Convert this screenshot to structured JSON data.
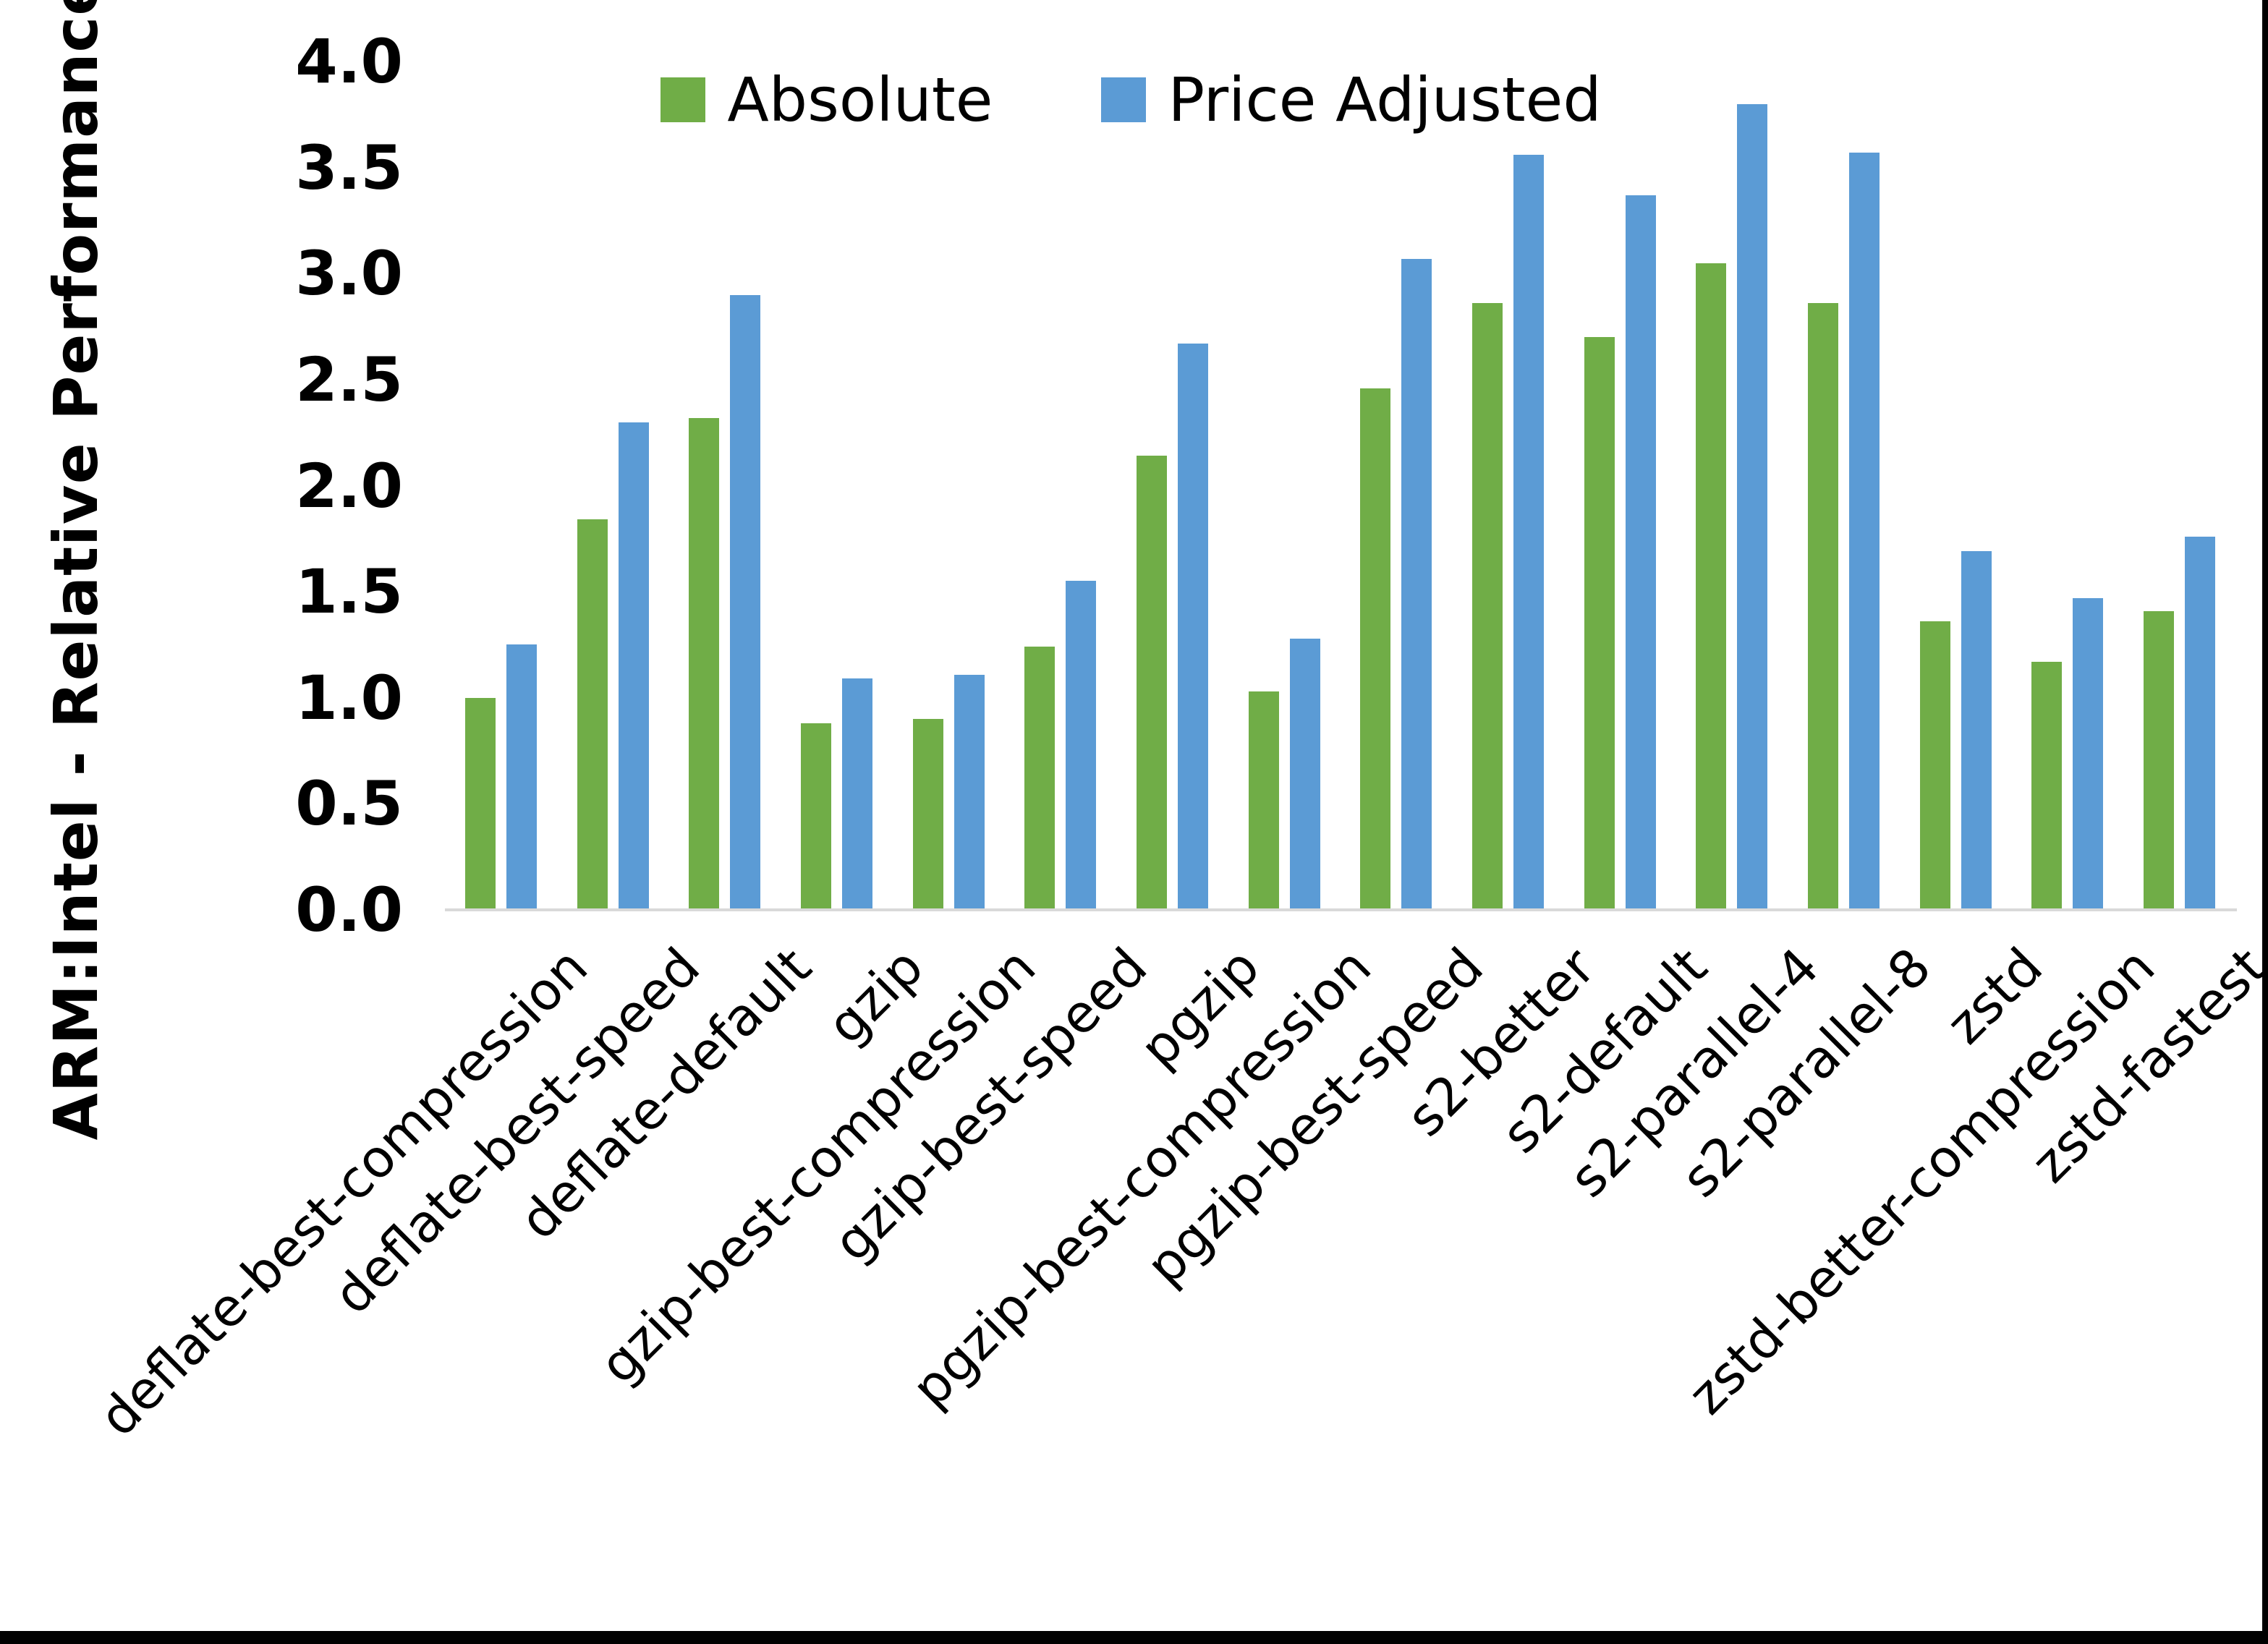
{
  "figure": {
    "background_color": "#FFFFFF",
    "frame_color": "#000000",
    "axis_line_color": "#D9D9D9",
    "text_color": "#000000"
  },
  "chart_data": {
    "type": "bar",
    "title": "",
    "xlabel": "",
    "ylabel": "ARM:Intel - Relative Performance",
    "ylim": [
      0.0,
      4.0
    ],
    "ytick_step": 0.5,
    "yticks": [
      "4.0",
      "3.5",
      "3.0",
      "2.5",
      "2.0",
      "1.5",
      "1.0",
      "0.5",
      "0.0"
    ],
    "grid": false,
    "legend_position": "top-center",
    "categories": [
      "deflate-best-compression",
      "deflate-best-speed",
      "deflate-default",
      "gzip",
      "gzip-best-compression",
      "gzip-best-speed",
      "pgzip",
      "pgzip-best-compression",
      "pgzip-best-speed",
      "s2-better",
      "s2-default",
      "s2-parallel-4",
      "s2-parallel-8",
      "zstd",
      "zstd-better-compression",
      "zstd-fastest"
    ],
    "series": [
      {
        "name": "Absolute",
        "color": "#70AD47",
        "values": [
          1.0,
          1.84,
          2.32,
          0.88,
          0.9,
          1.24,
          2.14,
          1.03,
          2.46,
          2.86,
          2.7,
          3.05,
          2.86,
          1.36,
          1.17,
          1.41
        ]
      },
      {
        "name": "Price Adjusted",
        "color": "#5B9BD5",
        "values": [
          1.25,
          2.3,
          2.9,
          1.09,
          1.11,
          1.55,
          2.67,
          1.28,
          3.07,
          3.56,
          3.37,
          3.8,
          3.57,
          1.69,
          1.47,
          1.76
        ]
      }
    ]
  }
}
